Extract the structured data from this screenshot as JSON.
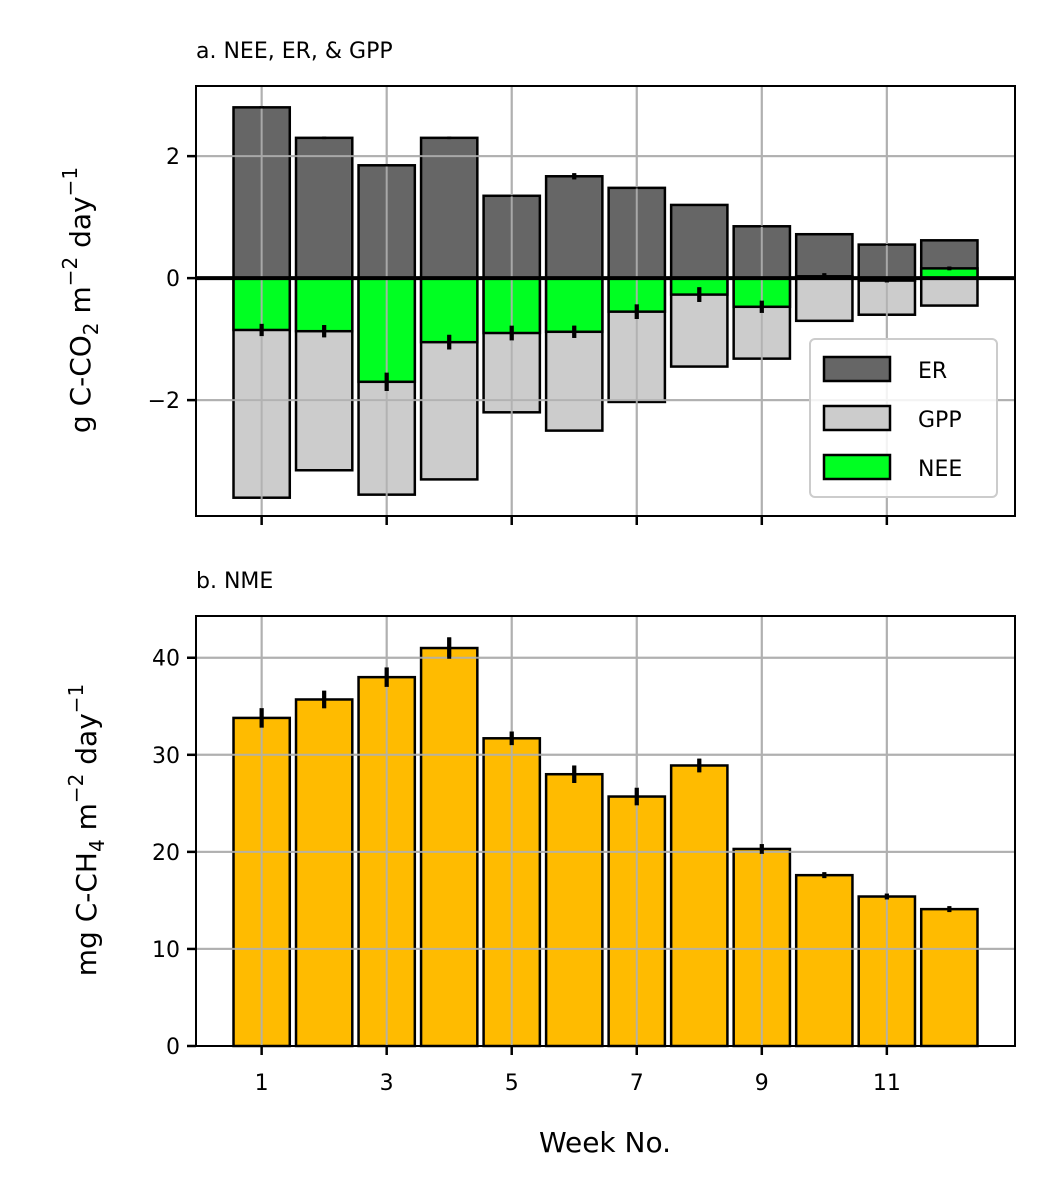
{
  "chart_data": [
    {
      "type": "bar",
      "title": "a. NEE, ER, & GPP",
      "ylabel": "g C-CO₂ m⁻² day⁻¹",
      "ylabel_parts": {
        "main": "g C-CO",
        "sub": "2",
        "mid": " m",
        "sup1": "−2",
        "tail": " day",
        "sup2": "−1"
      },
      "xlabel": "",
      "x": [
        1,
        2,
        3,
        4,
        5,
        6,
        7,
        8,
        9,
        10,
        11,
        12
      ],
      "xlim": [
        -0.05,
        13.05
      ],
      "ylim": [
        -3.9,
        3.15
      ],
      "yticks": [
        -2,
        0,
        2
      ],
      "ytick_labels": [
        "−2",
        "0",
        "2"
      ],
      "xticks": [
        1,
        3,
        5,
        7,
        9,
        11
      ],
      "grid": true,
      "zero_line": true,
      "legend_position": "lower-right",
      "series": [
        {
          "name": "ER",
          "color": "#666666",
          "values": [
            2.8,
            2.3,
            1.85,
            2.3,
            1.35,
            1.67,
            1.48,
            1.2,
            0.85,
            0.72,
            0.55,
            0.62
          ],
          "errors": [
            0.02,
            0.02,
            0.02,
            0.02,
            0.01,
            0.05,
            0.01,
            0.01,
            0.01,
            0.01,
            0.01,
            0.01
          ]
        },
        {
          "name": "GPP",
          "color": "#cccccc",
          "values": [
            -3.6,
            -3.15,
            -3.55,
            -3.3,
            -2.2,
            -2.5,
            -2.03,
            -1.45,
            -1.32,
            -0.7,
            -0.6,
            -0.45
          ],
          "errors": [
            0,
            0,
            0,
            0,
            0,
            0,
            0,
            0,
            0,
            0,
            0,
            0
          ]
        },
        {
          "name": "NEE",
          "color": "#00ff22",
          "values": [
            -0.85,
            -0.87,
            -1.7,
            -1.05,
            -0.9,
            -0.88,
            -0.55,
            -0.27,
            -0.47,
            0.03,
            -0.04,
            0.16
          ],
          "errors": [
            0.1,
            0.1,
            0.15,
            0.12,
            0.12,
            0.1,
            0.12,
            0.12,
            0.1,
            0.05,
            0.03,
            0.03
          ]
        }
      ]
    },
    {
      "type": "bar",
      "title": "b. NME",
      "ylabel": "mg C-CH₄ m⁻² day⁻¹",
      "ylabel_parts": {
        "main": "mg C-CH",
        "sub": "4",
        "mid": " m",
        "sup1": "−2",
        "tail": " day",
        "sup2": "−1"
      },
      "xlabel": "Week No.",
      "x": [
        1,
        2,
        3,
        4,
        5,
        6,
        7,
        8,
        9,
        10,
        11,
        12
      ],
      "xlim": [
        -0.05,
        13.05
      ],
      "ylim": [
        0,
        44.3
      ],
      "yticks": [
        0,
        10,
        20,
        30,
        40
      ],
      "ytick_labels": [
        "0",
        "10",
        "20",
        "30",
        "40"
      ],
      "xticks": [
        1,
        3,
        5,
        7,
        9,
        11
      ],
      "xtick_labels": [
        "1",
        "3",
        "5",
        "7",
        "9",
        "11"
      ],
      "grid": true,
      "series": [
        {
          "name": "NME",
          "color": "#ffbb00",
          "values": [
            33.8,
            35.7,
            38.0,
            41.0,
            31.7,
            28.0,
            25.7,
            28.9,
            20.3,
            17.6,
            15.4,
            14.1
          ],
          "errors": [
            1.0,
            0.9,
            1.0,
            1.1,
            0.7,
            0.9,
            0.9,
            0.7,
            0.5,
            0.3,
            0.3,
            0.3
          ]
        }
      ]
    }
  ]
}
